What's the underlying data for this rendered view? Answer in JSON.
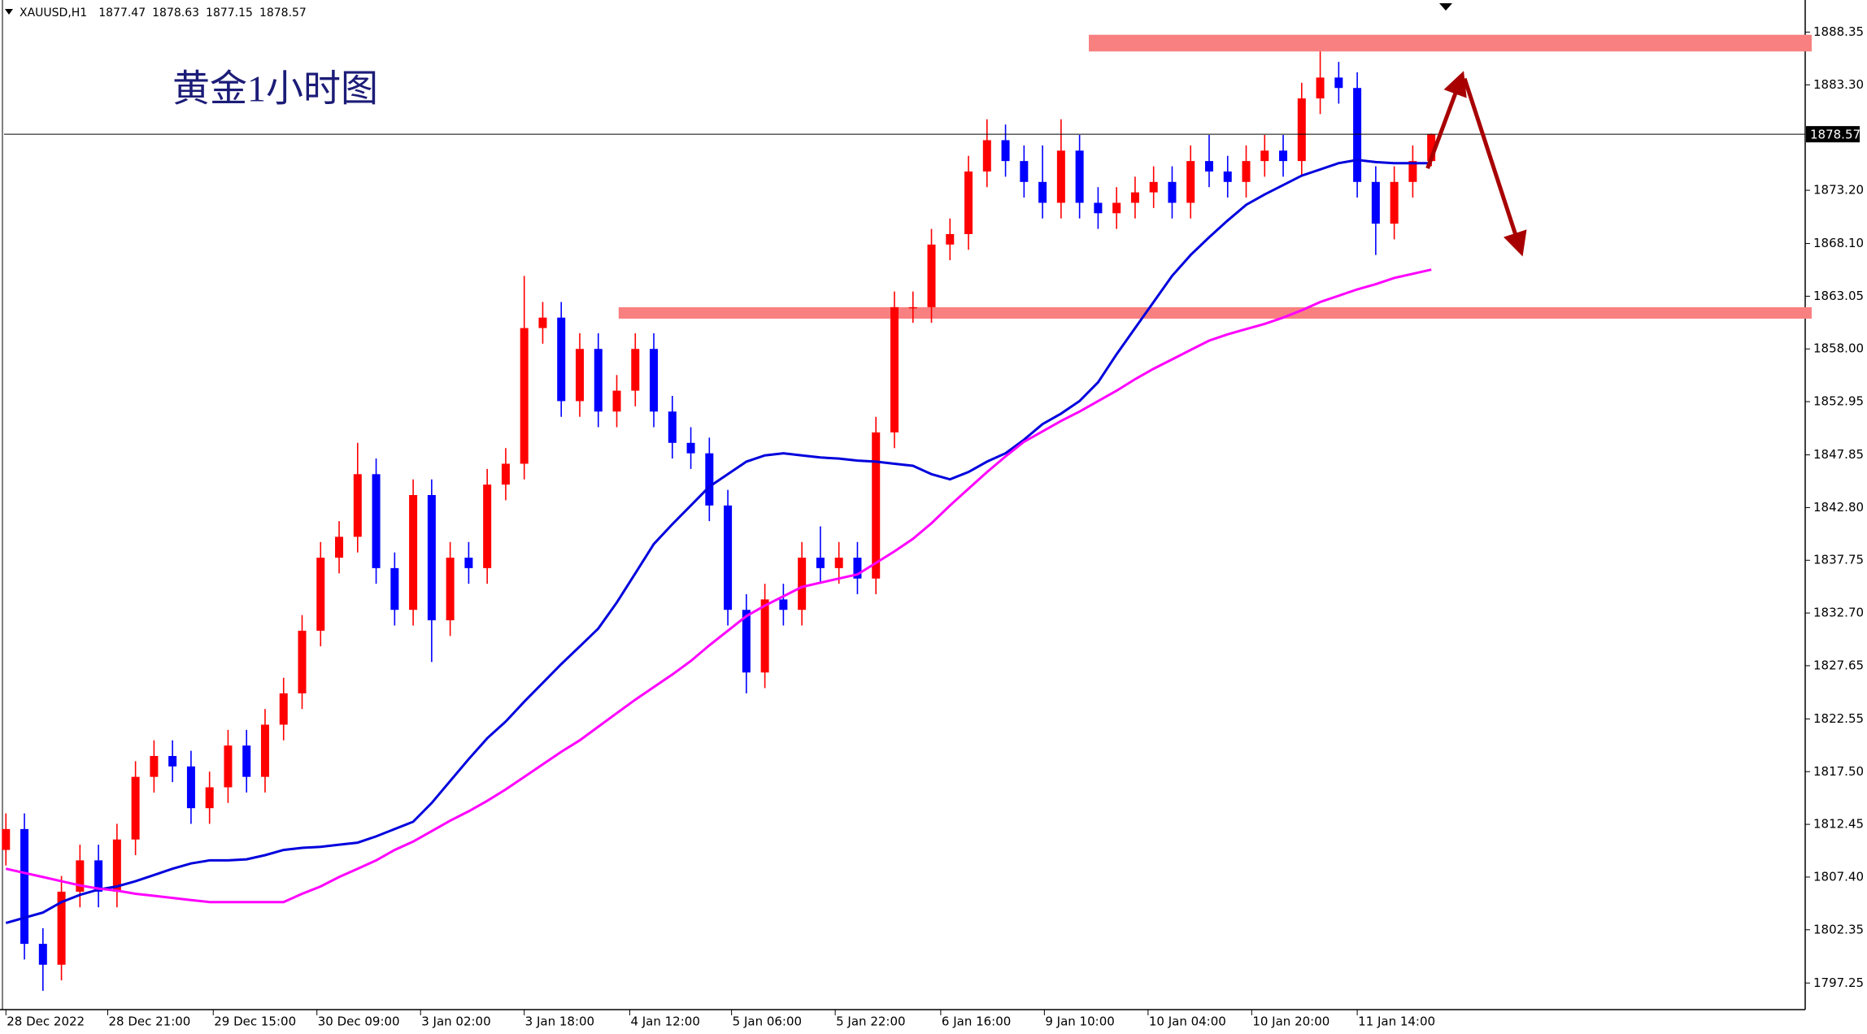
{
  "chart_data": {
    "type": "candlestick",
    "title": "黄金1小时图",
    "symbol": "XAUUSD,H1",
    "ohlc": [
      1877.47,
      1878.63,
      1877.15,
      1878.57
    ],
    "last_price": 1878.57,
    "up_color": "#ff0000",
    "down_color": "#0000ff",
    "candles": {
      "x": [
        0,
        1,
        2,
        3,
        4,
        5,
        6,
        7,
        8,
        9,
        10,
        11,
        12,
        13,
        14,
        15,
        16,
        17,
        18,
        19,
        20,
        21,
        22,
        23,
        24,
        25,
        26,
        27,
        28,
        29,
        30,
        31,
        32,
        33,
        34,
        35,
        36,
        37,
        38,
        39,
        40,
        41,
        42,
        43,
        44,
        45,
        46,
        47,
        48,
        49,
        50,
        51,
        52,
        53,
        54,
        55,
        56,
        57,
        58,
        59,
        60,
        61,
        62,
        63,
        64,
        65,
        66,
        67,
        68,
        69,
        70,
        71,
        72,
        73,
        74,
        75,
        76,
        77
      ],
      "open": [
        1810,
        1812,
        1801,
        1799,
        1806,
        1809,
        1806,
        1811,
        1817,
        1819,
        1818,
        1814,
        1816,
        1820,
        1817,
        1822,
        1825,
        1831,
        1838,
        1840,
        1846,
        1837,
        1833,
        1844,
        1832,
        1838,
        1837,
        1845,
        1847,
        1860,
        1861,
        1853,
        1858,
        1852,
        1854,
        1858,
        1852,
        1849,
        1848,
        1843,
        1833,
        1827,
        1834,
        1833,
        1838,
        1837,
        1838,
        1836,
        1850,
        1862,
        1862,
        1868,
        1869,
        1875,
        1878,
        1876,
        1874,
        1872,
        1877,
        1872,
        1871,
        1872,
        1873,
        1874,
        1872,
        1876,
        1875,
        1874,
        1876,
        1877,
        1876,
        1882,
        1884,
        1883,
        1874,
        1870,
        1874,
        1876
      ],
      "high": [
        1813.5,
        1813.5,
        1802.5,
        1807.5,
        1810.5,
        1810.5,
        1812.5,
        1818.5,
        1820.5,
        1820.5,
        1819.5,
        1817.5,
        1821.5,
        1821.5,
        1823.5,
        1826.5,
        1832.5,
        1839.5,
        1841.5,
        1849,
        1847.5,
        1838.5,
        1845.5,
        1845.5,
        1839.5,
        1839.5,
        1846.5,
        1848.5,
        1865,
        1862.5,
        1862.5,
        1859.5,
        1859.5,
        1855.5,
        1859.5,
        1859.5,
        1853.5,
        1850.5,
        1849.5,
        1844.5,
        1834.5,
        1835.5,
        1835.5,
        1839.5,
        1841,
        1839.5,
        1839.5,
        1851.5,
        1863.5,
        1863.5,
        1869.5,
        1870.5,
        1876.5,
        1880,
        1879.5,
        1877.5,
        1877.5,
        1880,
        1878.5,
        1873.5,
        1873.5,
        1874.5,
        1875.5,
        1875.5,
        1877.5,
        1878.5,
        1876.5,
        1877.5,
        1878.5,
        1878.5,
        1883.5,
        1886.5,
        1885.5,
        1884.5,
        1875.5,
        1875.5,
        1877.5,
        1878.63
      ],
      "low": [
        1808.5,
        1799.5,
        1796.5,
        1797.5,
        1804.5,
        1804.5,
        1804.5,
        1809.5,
        1815.5,
        1816.5,
        1812.5,
        1812.5,
        1814.5,
        1815.5,
        1815.5,
        1820.5,
        1823.5,
        1829.5,
        1836.5,
        1838.5,
        1835.5,
        1831.5,
        1831.5,
        1828,
        1830.5,
        1835.5,
        1835.5,
        1843.5,
        1845.5,
        1858.5,
        1851.5,
        1851.5,
        1850.5,
        1850.5,
        1852.5,
        1850.5,
        1847.5,
        1846.5,
        1841.5,
        1831.5,
        1825,
        1825.5,
        1831.5,
        1831.5,
        1835.5,
        1835.5,
        1834.5,
        1834.5,
        1848.5,
        1860.5,
        1860.5,
        1866.5,
        1867.5,
        1873.5,
        1874.5,
        1872.5,
        1870.5,
        1870.5,
        1870.5,
        1869.5,
        1869.5,
        1870.5,
        1871.5,
        1870.5,
        1870.5,
        1873.5,
        1872.5,
        1872.5,
        1874.5,
        1874.5,
        1874.5,
        1880.5,
        1881.5,
        1872.5,
        1867,
        1868.5,
        1872.5,
        1875.5
      ],
      "close": [
        1812,
        1801,
        1799,
        1806,
        1809,
        1806,
        1811,
        1817,
        1819,
        1818,
        1814,
        1816,
        1820,
        1817,
        1822,
        1825,
        1831,
        1838,
        1840,
        1846,
        1837,
        1833,
        1844,
        1832,
        1838,
        1837,
        1845,
        1847,
        1860,
        1861,
        1853,
        1858,
        1852,
        1854,
        1858,
        1852,
        1849,
        1848,
        1843,
        1833,
        1827,
        1834,
        1833,
        1838,
        1837,
        1838,
        1836,
        1850,
        1862,
        1862,
        1868,
        1869,
        1875,
        1878,
        1876,
        1874,
        1872,
        1877,
        1872,
        1871,
        1872,
        1873,
        1874,
        1872,
        1876,
        1875,
        1874,
        1876,
        1877,
        1876,
        1882,
        1884,
        1883,
        1874,
        1870,
        1874,
        1876,
        1878.57
      ]
    },
    "series": [
      {
        "color": "#0000dd",
        "values": [
          1803,
          1803.5,
          1804,
          1805,
          1805.7,
          1806.2,
          1806.5,
          1807,
          1807.6,
          1808.2,
          1808.7,
          1809,
          1809,
          1809.1,
          1809.5,
          1810,
          1810.2,
          1810.3,
          1810.5,
          1810.7,
          1811.3,
          1812,
          1812.7,
          1814.5,
          1816.6,
          1818.7,
          1820.7,
          1822.3,
          1824.2,
          1826,
          1827.8,
          1829.5,
          1831.2,
          1833.7,
          1836.5,
          1839.3,
          1841.2,
          1843,
          1844.8,
          1846,
          1847.2,
          1847.8,
          1848,
          1847.8,
          1847.6,
          1847.5,
          1847.3,
          1847.2,
          1847,
          1846.8,
          1846,
          1845.5,
          1846.2,
          1847.2,
          1848,
          1849.3,
          1850.8,
          1851.8,
          1853,
          1854.8,
          1857.5,
          1860,
          1862.5,
          1865,
          1867,
          1868.7,
          1870.3,
          1871.8,
          1872.8,
          1873.7,
          1874.6,
          1875.2,
          1875.8,
          1876.1,
          1875.9,
          1875.8,
          1875.8,
          1875.8
        ]
      },
      {
        "color": "#ff00ff",
        "values": [
          1808.2,
          1807.8,
          1807.4,
          1807,
          1806.6,
          1806.3,
          1806.1,
          1805.8,
          1805.6,
          1805.4,
          1805.2,
          1805,
          1805,
          1805,
          1805,
          1805,
          1805.8,
          1806.5,
          1807.4,
          1808.2,
          1809,
          1810,
          1810.8,
          1811.8,
          1812.8,
          1813.7,
          1814.7,
          1815.8,
          1817,
          1818.2,
          1819.4,
          1820.5,
          1821.8,
          1823.1,
          1824.4,
          1825.6,
          1826.8,
          1828.1,
          1829.6,
          1831,
          1832.4,
          1833.4,
          1834.3,
          1835.2,
          1835.6,
          1836,
          1836.4,
          1837.5,
          1838.6,
          1839.8,
          1841.3,
          1843,
          1844.6,
          1846.2,
          1847.7,
          1849.1,
          1850.1,
          1851.1,
          1852,
          1853,
          1854,
          1855.1,
          1856.1,
          1857,
          1857.9,
          1858.8,
          1859.4,
          1859.9,
          1860.4,
          1861,
          1861.7,
          1862.5,
          1863.1,
          1863.7,
          1864.2,
          1864.8,
          1865.2,
          1865.6
        ]
      }
    ],
    "zones": [
      {
        "color": "#f88080",
        "range": [
          1886.5,
          1888.1
        ],
        "x_start": 58.5
      },
      {
        "color": "#f88080",
        "range": [
          1860.9,
          1862.0
        ],
        "x_start": 33.1
      }
    ],
    "arrow_color": "#a80000",
    "arrows": [
      {
        "from": [
          76.8,
          1875.3
        ],
        "to": [
          78.6,
          1883.9
        ]
      },
      {
        "from": [
          78.8,
          1883.9
        ],
        "to": [
          81.8,
          1867.6
        ]
      }
    ],
    "xlim": [
      -0.1,
      97.2
    ],
    "ylim": [
      1794.7,
      1891.43
    ],
    "xticks": [
      {
        "value": 0,
        "label": "28 Dec 2022"
      },
      {
        "value": 5.5,
        "label": "28 Dec 21:00"
      },
      {
        "value": 11.2,
        "label": "29 Dec 15:00"
      },
      {
        "value": 16.8,
        "label": "30 Dec 09:00"
      },
      {
        "value": 22.4,
        "label": "3 Jan 02:00"
      },
      {
        "value": 28,
        "label": "3 Jan 18:00"
      },
      {
        "value": 33.7,
        "label": "4 Jan 12:00"
      },
      {
        "value": 39.2,
        "label": "5 Jan 06:00"
      },
      {
        "value": 44.8,
        "label": "5 Jan 22:00"
      },
      {
        "value": 50.5,
        "label": "6 Jan 16:00"
      },
      {
        "value": 56.1,
        "label": "9 Jan 10:00"
      },
      {
        "value": 61.7,
        "label": "10 Jan 04:00"
      },
      {
        "value": 67.3,
        "label": "10 Jan 20:00"
      },
      {
        "value": 73,
        "label": "11 Jan 14:00"
      }
    ],
    "yticks": [
      {
        "value": 1888.35,
        "label": "1888.35"
      },
      {
        "value": 1883.3,
        "label": "1883.30"
      },
      {
        "value": 1873.2,
        "label": "1873.20"
      },
      {
        "value": 1868.1,
        "label": "1868.10"
      },
      {
        "value": 1863.05,
        "label": "1863.05"
      },
      {
        "value": 1858,
        "label": "1858.00"
      },
      {
        "value": 1852.95,
        "label": "1852.95"
      },
      {
        "value": 1847.85,
        "label": "1847.85"
      },
      {
        "value": 1842.8,
        "label": "1842.80"
      },
      {
        "value": 1837.75,
        "label": "1837.75"
      },
      {
        "value": 1832.7,
        "label": "1832.70"
      },
      {
        "value": 1827.65,
        "label": "1827.65"
      },
      {
        "value": 1822.55,
        "label": "1822.55"
      },
      {
        "value": 1817.5,
        "label": "1817.50"
      },
      {
        "value": 1812.45,
        "label": "1812.45"
      },
      {
        "value": 1807.4,
        "label": "1807.40"
      },
      {
        "value": 1802.35,
        "label": "1802.35"
      },
      {
        "value": 1797.25,
        "label": "1797.25"
      }
    ]
  }
}
